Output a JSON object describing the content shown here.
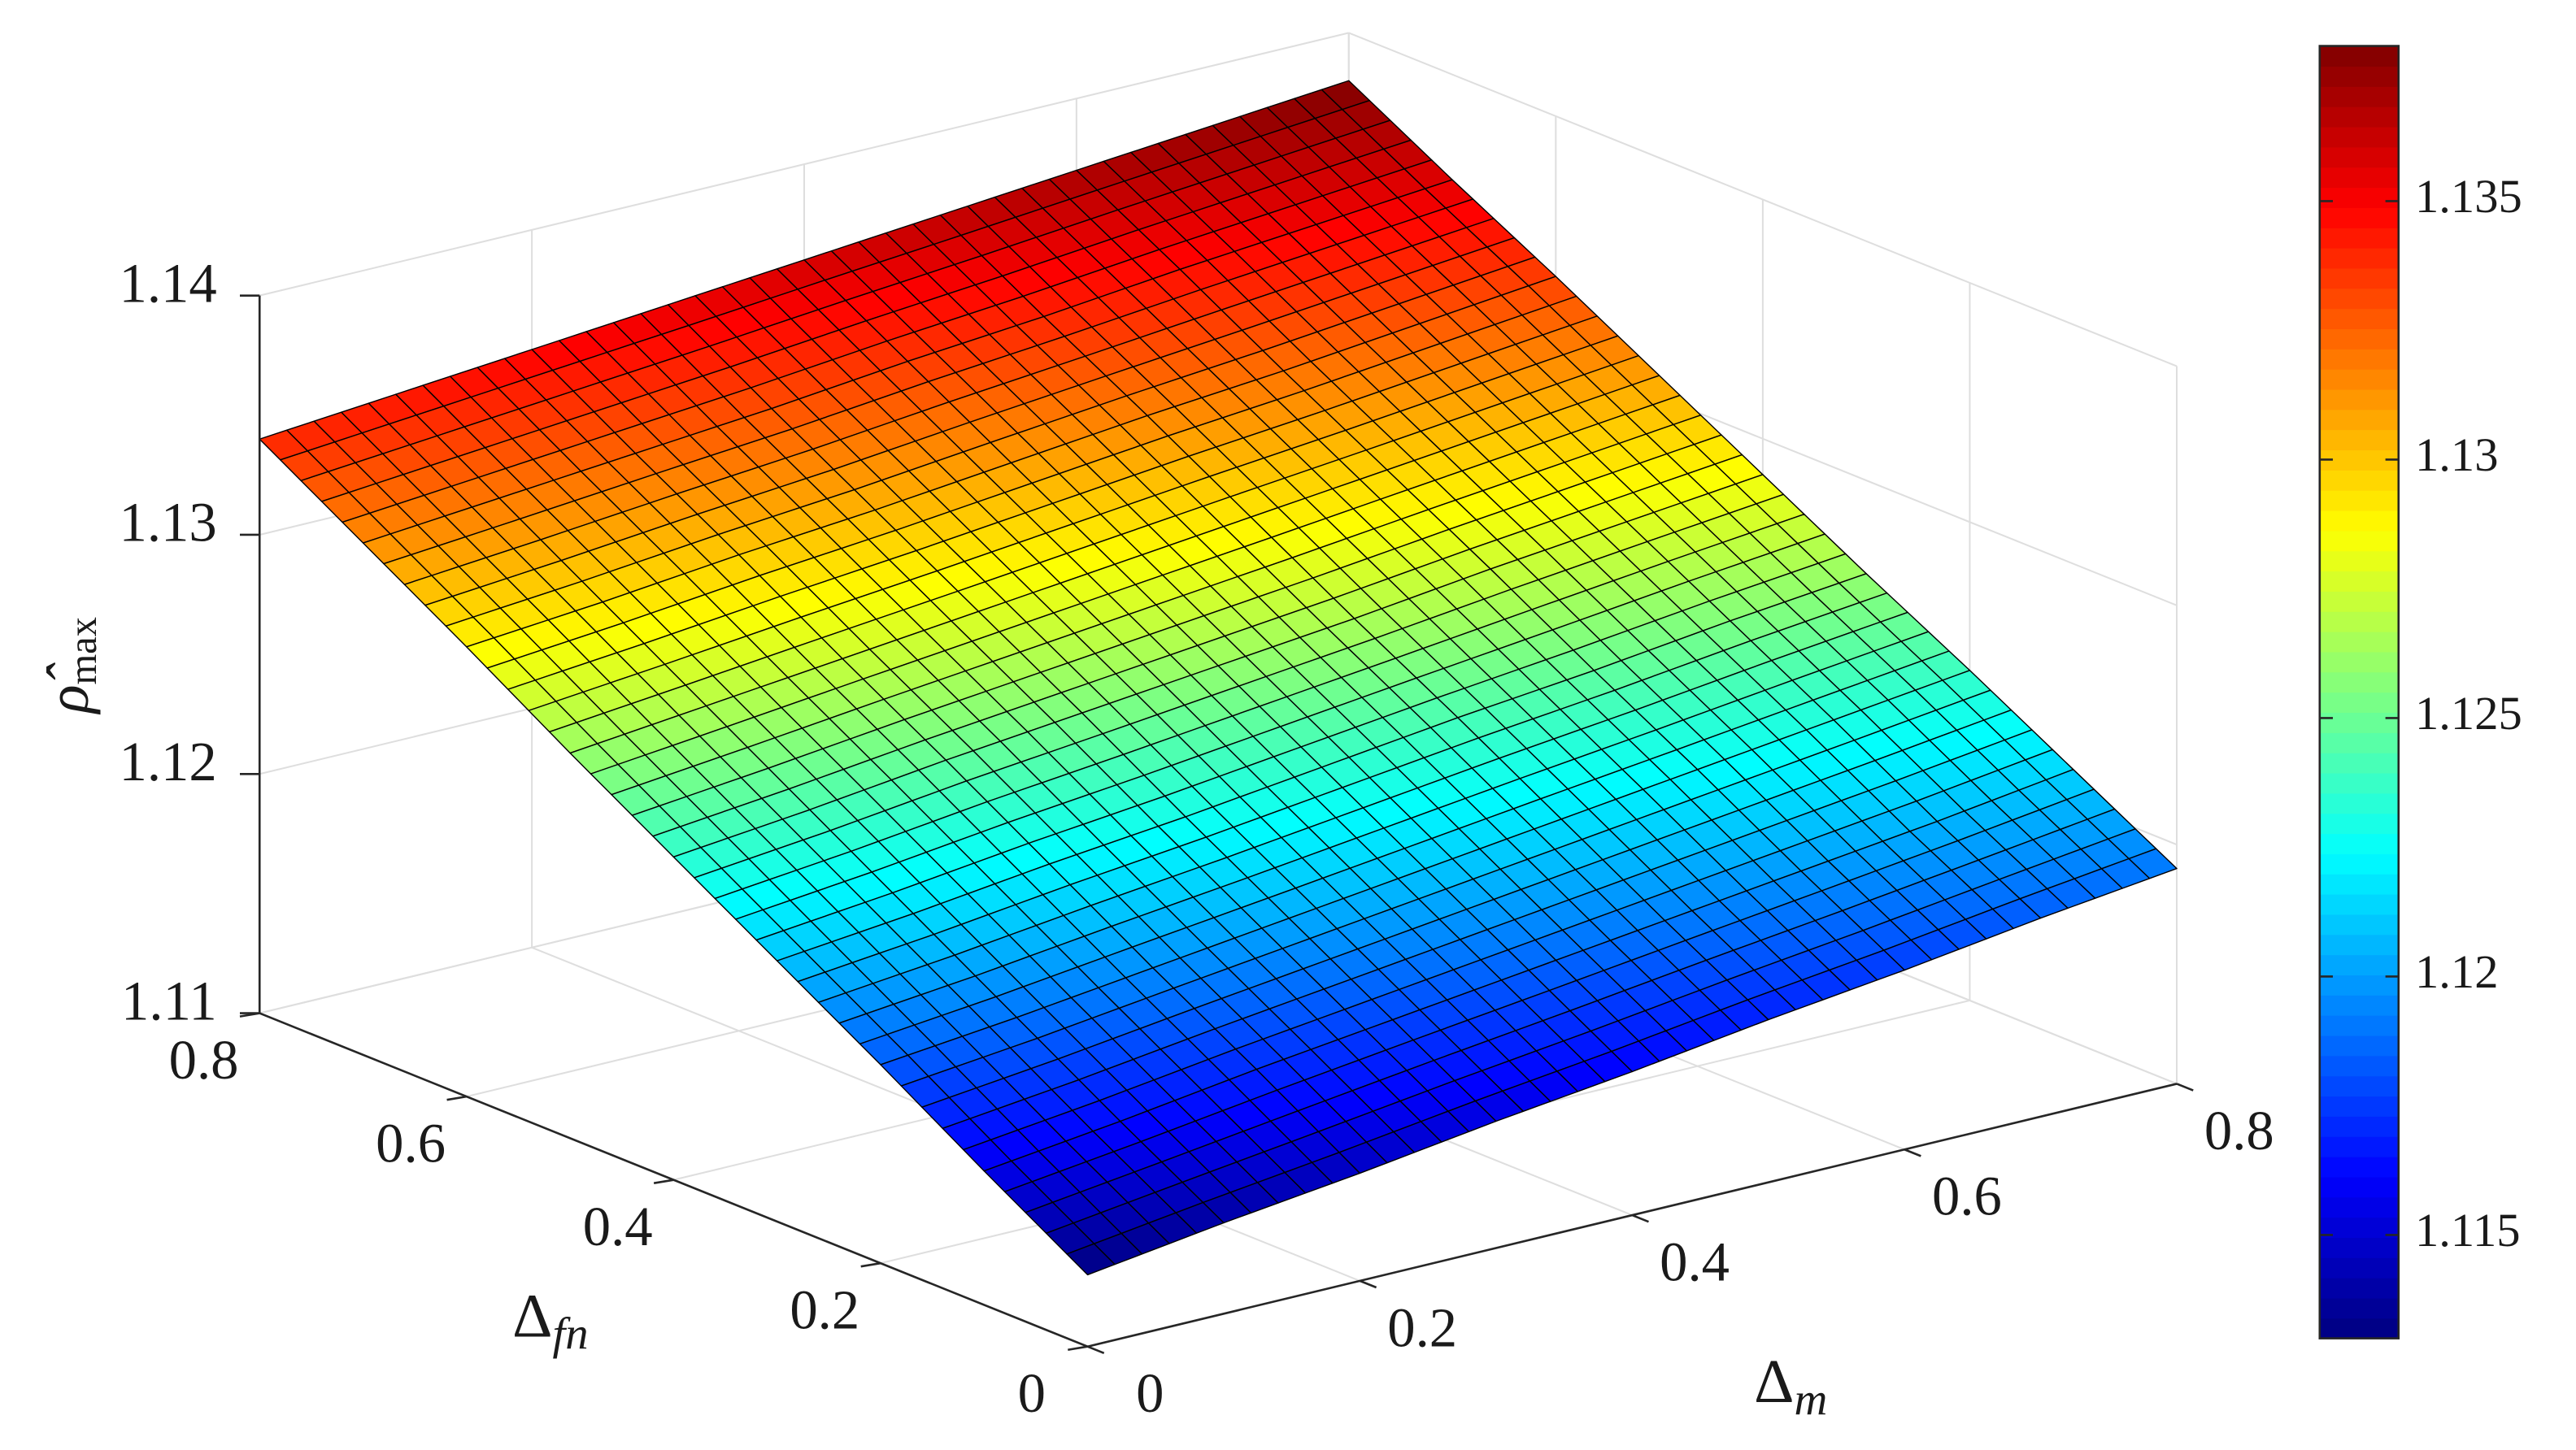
{
  "chart_data": {
    "type": "surface",
    "x": [
      0,
      0.1,
      0.2,
      0.3,
      0.4,
      0.5,
      0.6,
      0.7,
      0.8
    ],
    "y": [
      0,
      0.1,
      0.2,
      0.3,
      0.4,
      0.5,
      0.6,
      0.7,
      0.8
    ],
    "z": [
      [
        1.113,
        1.1138,
        1.1145,
        1.1153,
        1.116,
        1.1168,
        1.1175,
        1.1183,
        1.119
      ],
      [
        1.1156,
        1.1163,
        1.1171,
        1.1178,
        1.1185,
        1.1192,
        1.1199,
        1.1206,
        1.1214
      ],
      [
        1.1183,
        1.1189,
        1.1196,
        1.1203,
        1.121,
        1.1217,
        1.1224,
        1.1231,
        1.1238
      ],
      [
        1.1209,
        1.1215,
        1.1222,
        1.1228,
        1.1235,
        1.1242,
        1.1248,
        1.1255,
        1.1261
      ],
      [
        1.1235,
        1.1241,
        1.1248,
        1.1254,
        1.126,
        1.1266,
        1.1273,
        1.1279,
        1.1285
      ],
      [
        1.1261,
        1.1267,
        1.1273,
        1.1279,
        1.1285,
        1.1291,
        1.1297,
        1.1303,
        1.1309
      ],
      [
        1.1288,
        1.1293,
        1.1299,
        1.1304,
        1.131,
        1.1316,
        1.1321,
        1.1327,
        1.1333
      ],
      [
        1.1314,
        1.1319,
        1.1324,
        1.1329,
        1.1335,
        1.134,
        1.1346,
        1.1351,
        1.1356
      ],
      [
        1.134,
        1.1345,
        1.135,
        1.1355,
        1.136,
        1.1365,
        1.137,
        1.1375,
        1.138
      ]
    ],
    "xlim": [
      0,
      0.8
    ],
    "ylim": [
      0,
      0.8
    ],
    "zlim": [
      1.11,
      1.14
    ],
    "xticks": [
      0,
      0.2,
      0.4,
      0.6,
      0.8
    ],
    "yticks": [
      0,
      0.2,
      0.4,
      0.6,
      0.8
    ],
    "zticks": [
      1.11,
      1.12,
      1.13,
      1.14
    ],
    "x_label": {
      "text": "Δ",
      "subscript": "m"
    },
    "y_label": {
      "text": "Δ",
      "subscript": "fn"
    },
    "z_label": {
      "text": "ρ̂",
      "subscript": "max"
    },
    "colormap": "jet",
    "edge_color": "#000000",
    "grid": true,
    "colorbar": {
      "clim": [
        1.113,
        1.138
      ],
      "ticks": [
        1.115,
        1.12,
        1.125,
        1.13,
        1.135
      ]
    }
  }
}
